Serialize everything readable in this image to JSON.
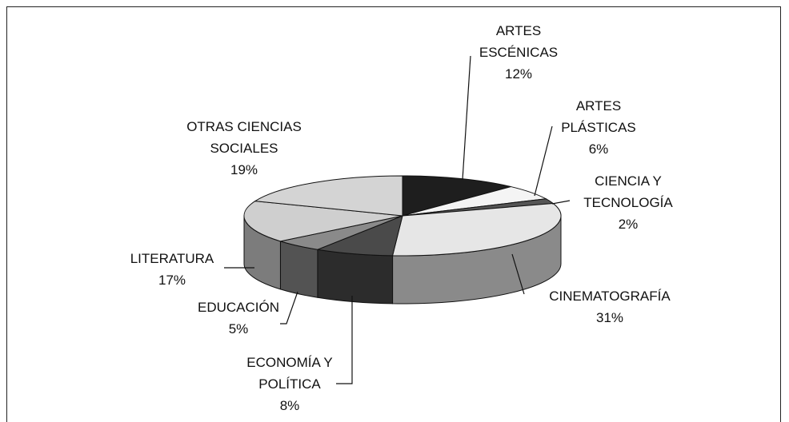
{
  "chart_data": {
    "type": "pie",
    "categories": [
      "ARTES ESCÉNICAS",
      "ARTES PLÁSTICAS",
      "CIENCIA Y TECNOLOGÍA",
      "CINEMATOGRAFÍA",
      "ECONOMÍA Y POLÍTICA",
      "EDUCACIÓN",
      "LITERATURA",
      "OTRAS CIENCIAS SOCIALES"
    ],
    "values": [
      12,
      6,
      2,
      31,
      8,
      5,
      17,
      19
    ],
    "value_labels": [
      "12%",
      "6%",
      "2%",
      "31%",
      "8%",
      "5%",
      "17%",
      "19%"
    ],
    "colors": [
      "#1e1e1e",
      "#f4f4f4",
      "#555555",
      "#e6e6e6",
      "#4a4a4a",
      "#8a8a8a",
      "#cfcfcf",
      "#d4d4d4"
    ]
  }
}
